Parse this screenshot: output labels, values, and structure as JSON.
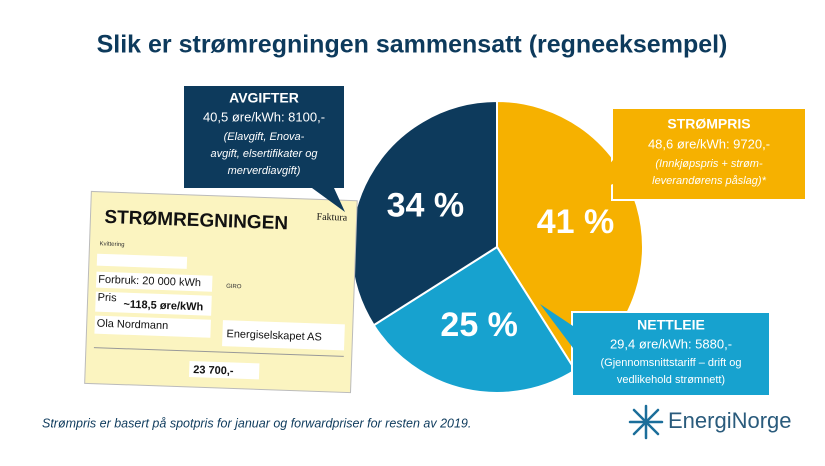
{
  "chart_data": {
    "type": "pie",
    "title": "Slik er strømregningen sammensatt (regneeksempel)",
    "categories": [
      "STRØMPRIS",
      "NETTLEIE",
      "AVGIFTER"
    ],
    "values": [
      41,
      25,
      34
    ],
    "value_labels": [
      "41 %",
      "25 %",
      "34 %"
    ],
    "colors": [
      "#f6b100",
      "#17a2cf",
      "#0d3a5c"
    ],
    "callouts": [
      {
        "line": "48,6 øre/kWh: 9720,-",
        "note": [
          "(Innkjøpspris + strøm-",
          "leverandørens påslag)*"
        ]
      },
      {
        "line": "29,4 øre/kWh: 5880,-",
        "note": [
          "(Gjennomsnittstariff – drift og",
          "vedlikehold strømnett)"
        ]
      },
      {
        "line": "40,5 øre/kWh: 8100,-",
        "note": [
          "(Elavgift, Enova-",
          "avgift, elsertifikater og",
          "merverdiavgift)"
        ]
      }
    ],
    "footnote": "Strømpris er basert på spotpris for januar og forwardpriser for resten av 2019."
  },
  "invoice": {
    "title": "STRØMREGNINGEN",
    "kind": "Faktura",
    "receipt": "Kvittering",
    "usage": "Forbruk: 20 000 kWh",
    "price_label": "Pris",
    "price": "~118,5 øre/kWh",
    "giro": "GIRO",
    "payer": "Ola Nordmann",
    "payee": "Energiselskapet AS",
    "amount": "23 700,-"
  },
  "logo": "EnergiNorge"
}
